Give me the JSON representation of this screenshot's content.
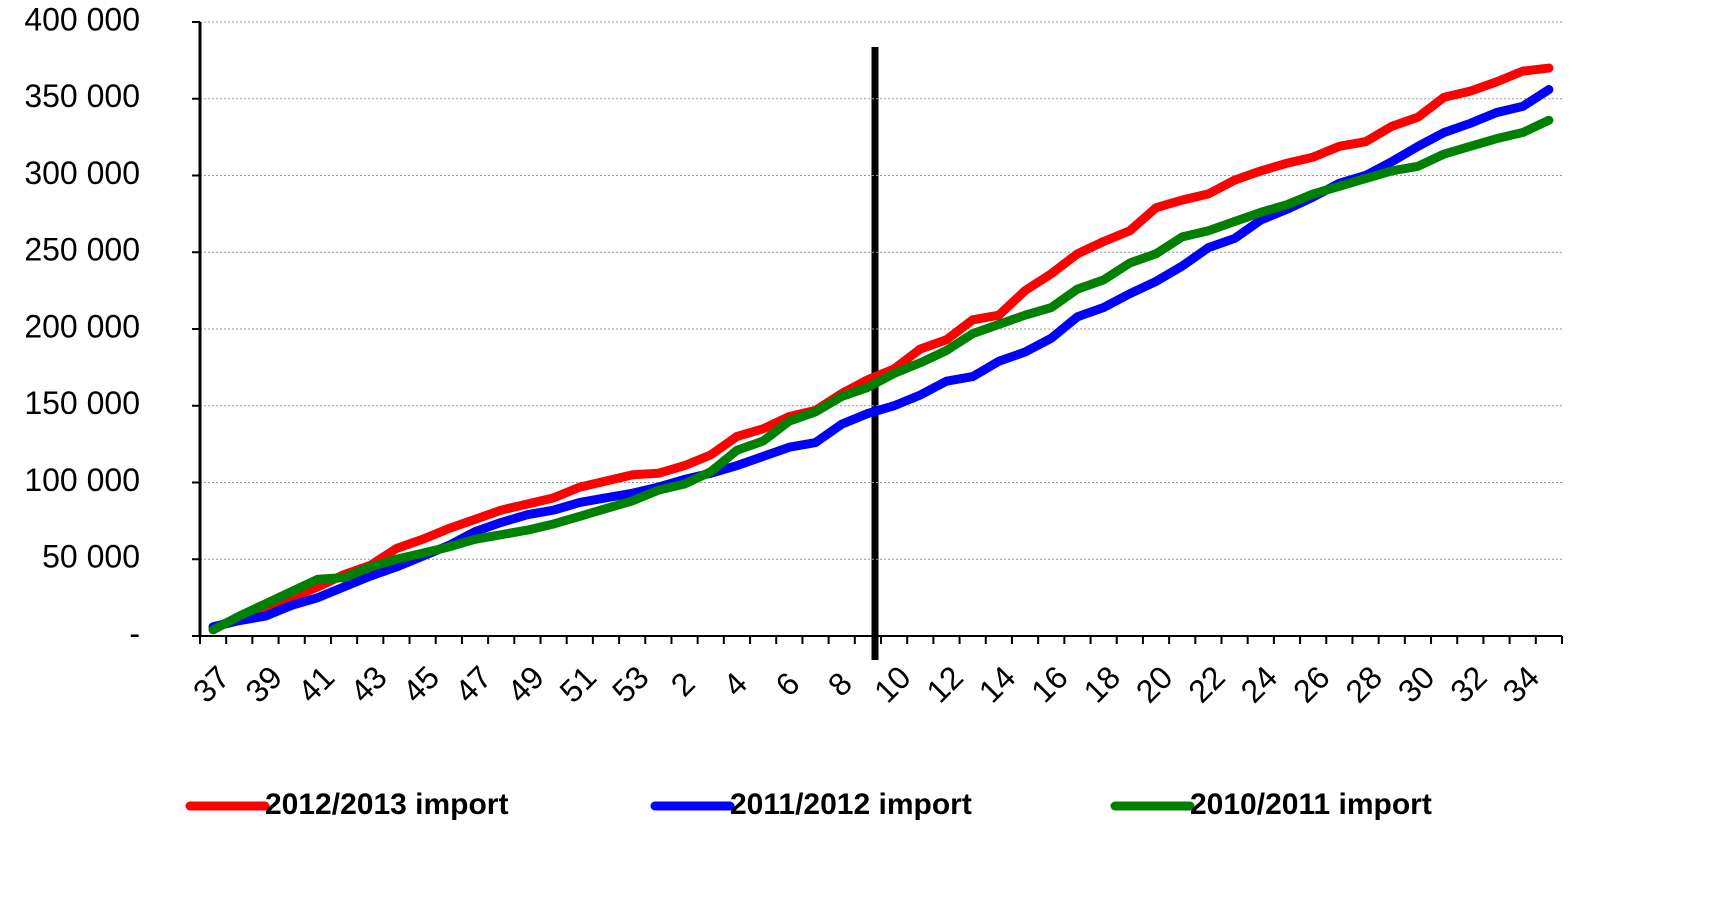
{
  "chart_data": {
    "type": "line",
    "categories": [
      37,
      null,
      39,
      null,
      41,
      null,
      43,
      null,
      45,
      null,
      47,
      null,
      49,
      null,
      51,
      null,
      53,
      null,
      2,
      null,
      4,
      null,
      6,
      null,
      8,
      null,
      10,
      null,
      12,
      null,
      14,
      null,
      16,
      null,
      18,
      null,
      20,
      null,
      22,
      null,
      24,
      null,
      26,
      null,
      28,
      null,
      30,
      null,
      32,
      null,
      34,
      null
    ],
    "series": [
      {
        "name": "2012/2013 import",
        "color": "#ff0000",
        "values": [
          5000,
          12000,
          18000,
          25000,
          32000,
          40000,
          46000,
          57000,
          63000,
          70000,
          76000,
          82000,
          86000,
          90000,
          97000,
          101000,
          105000,
          106000,
          111000,
          118000,
          130000,
          135000,
          143000,
          147000,
          158000,
          167000,
          174000,
          187000,
          193000,
          206000,
          209000,
          225000,
          236000,
          249000,
          257000,
          264000,
          279000,
          284000,
          288000,
          297000,
          303000,
          308000,
          312000,
          319000,
          322000,
          332000,
          338000,
          351000,
          355000,
          361000,
          368000,
          370000
        ]
      },
      {
        "name": "2011/2012 import",
        "color": "#0000ff",
        "values": [
          6000,
          10000,
          13000,
          20000,
          25000,
          32000,
          39000,
          45000,
          52000,
          59000,
          68000,
          74000,
          79000,
          82000,
          87000,
          90000,
          93000,
          97000,
          102000,
          106000,
          111000,
          117000,
          123000,
          126000,
          138000,
          145000,
          150000,
          157000,
          166000,
          169000,
          179000,
          185000,
          194000,
          208000,
          214000,
          223000,
          231000,
          241000,
          253000,
          259000,
          271000,
          278000,
          286000,
          295000,
          300000,
          309000,
          319000,
          328000,
          334000,
          341000,
          345000,
          356000
        ]
      },
      {
        "name": "2010/2011 import",
        "color": "#008000",
        "values": [
          4000,
          13000,
          21000,
          29000,
          37000,
          38000,
          45000,
          50000,
          54000,
          58000,
          63000,
          66000,
          69000,
          73000,
          78000,
          83000,
          88000,
          95000,
          99000,
          107000,
          121000,
          127000,
          140000,
          146000,
          156000,
          162000,
          171000,
          178000,
          186000,
          197000,
          203000,
          209000,
          214000,
          226000,
          232000,
          243000,
          249000,
          260000,
          264000,
          270000,
          276000,
          281000,
          288000,
          293000,
          298000,
          303000,
          306000,
          314000,
          319000,
          324000,
          328000,
          336000
        ]
      }
    ],
    "ylim": [
      0,
      400000
    ],
    "yticks": [
      {
        "value": 0,
        "label": "-"
      },
      {
        "value": 50000,
        "label": "50 000"
      },
      {
        "value": 100000,
        "label": "100 000"
      },
      {
        "value": 150000,
        "label": "150 000"
      },
      {
        "value": 200000,
        "label": "200 000"
      },
      {
        "value": 250000,
        "label": "250 000"
      },
      {
        "value": 300000,
        "label": "300 000"
      },
      {
        "value": 350000,
        "label": "350 000"
      },
      {
        "value": 400000,
        "label": "400 000"
      }
    ],
    "grid": true,
    "legend": "bottom"
  }
}
